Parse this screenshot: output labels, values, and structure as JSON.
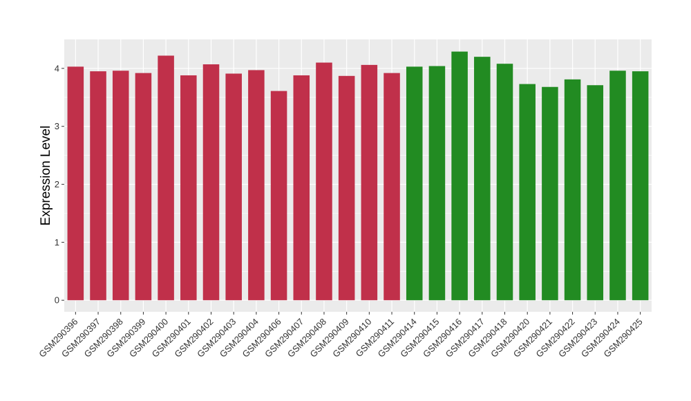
{
  "chart_data": {
    "type": "bar",
    "title": "",
    "xlabel": "",
    "ylabel": "Expression Level",
    "ylim": [
      -0.2,
      4.5
    ],
    "yticks": [
      0,
      1,
      2,
      3,
      4
    ],
    "grid": true,
    "legend": "none",
    "categories": [
      "GSM290396",
      "GSM290397",
      "GSM290398",
      "GSM290399",
      "GSM290400",
      "GSM290401",
      "GSM290402",
      "GSM290403",
      "GSM290404",
      "GSM290406",
      "GSM290407",
      "GSM290408",
      "GSM290409",
      "GSM290410",
      "GSM290411",
      "GSM290414",
      "GSM290415",
      "GSM290416",
      "GSM290417",
      "GSM290418",
      "GSM290420",
      "GSM290421",
      "GSM290422",
      "GSM290423",
      "GSM290424",
      "GSM290425"
    ],
    "values": [
      4.03,
      3.95,
      3.96,
      3.92,
      4.22,
      3.88,
      4.07,
      3.91,
      3.97,
      3.61,
      3.88,
      4.1,
      3.87,
      4.06,
      3.92,
      4.03,
      4.04,
      4.29,
      4.2,
      4.08,
      3.73,
      3.68,
      3.81,
      3.71,
      3.96,
      3.95
    ],
    "bar_colors": [
      "#c0304a",
      "#c0304a",
      "#c0304a",
      "#c0304a",
      "#c0304a",
      "#c0304a",
      "#c0304a",
      "#c0304a",
      "#c0304a",
      "#c0304a",
      "#c0304a",
      "#c0304a",
      "#c0304a",
      "#c0304a",
      "#c0304a",
      "#228b22",
      "#228b22",
      "#228b22",
      "#228b22",
      "#228b22",
      "#228b22",
      "#228b22",
      "#228b22",
      "#228b22",
      "#228b22",
      "#228b22"
    ],
    "panel_background": "#ebebeb",
    "gridline_color": "#ffffff"
  }
}
